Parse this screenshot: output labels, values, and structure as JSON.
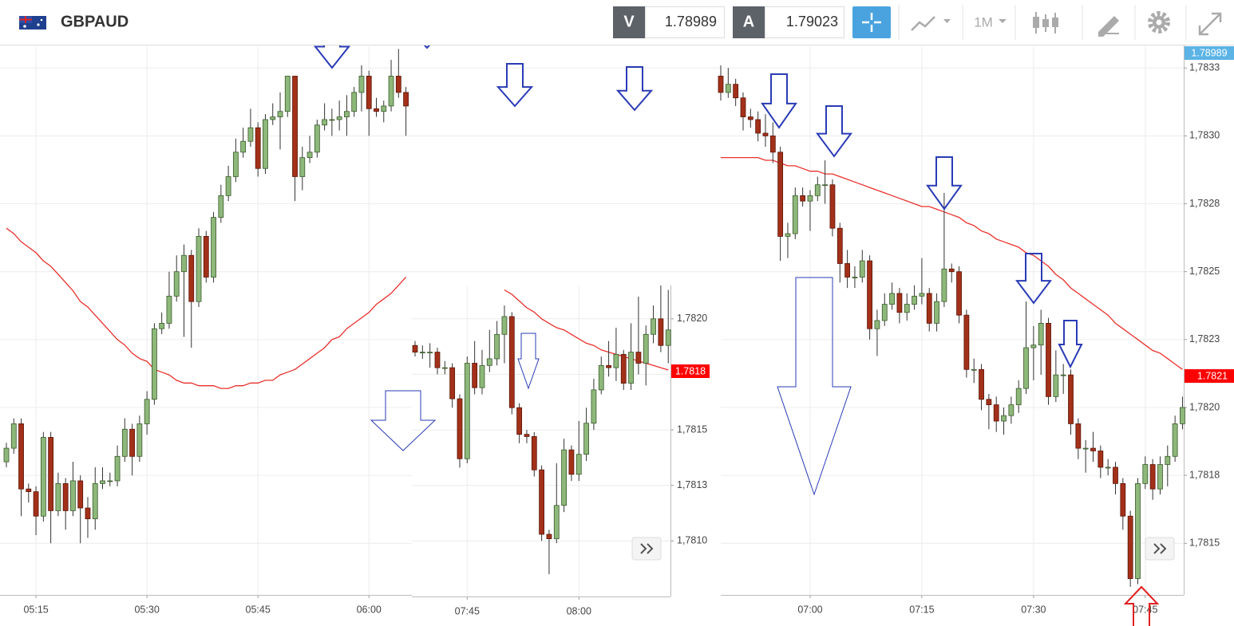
{
  "header": {
    "symbol": "GBPAUD",
    "bid_label": "V",
    "bid": "1.78989",
    "ask_label": "A",
    "ask": "1.79023",
    "timeframe": "1M"
  },
  "chart_data": [
    {
      "type": "candlestick",
      "ylim": [
        1.78131,
        1.78333
      ],
      "yticks": [
        {
          "value": 1.78325,
          "label": "1,7833"
        },
        {
          "value": 1.783,
          "label": "1,7830"
        },
        {
          "value": 1.78275,
          "label": "1,7828"
        },
        {
          "value": 1.7825,
          "label": "1,7825"
        },
        {
          "value": 1.78225,
          "label": "1,7823"
        },
        {
          "value": 1.782,
          "label": "1,7820"
        },
        {
          "value": 1.78175,
          "label": "1,7818"
        },
        {
          "value": 1.7815,
          "label": "1,7815"
        }
      ],
      "grid": true,
      "up_color": "#8db87a",
      "down_color": "#a33019",
      "ma_color": "#e8302b",
      "last_price_tag": "1.78989",
      "ma_tag": "1.7821",
      "xticks_left": [
        "05:15",
        "05:30",
        "05:45",
        "06:00"
      ],
      "xticks_right": [
        "07:00",
        "07:15",
        "07:30",
        "07:45"
      ],
      "candles_left": [
        [
          1.7818,
          1.78187,
          1.78178,
          1.78185
        ],
        [
          1.78185,
          1.78196,
          1.78183,
          1.78194
        ],
        [
          1.78194,
          1.78196,
          1.7816,
          1.7817
        ],
        [
          1.7817,
          1.78172,
          1.78165,
          1.78169
        ],
        [
          1.78169,
          1.78171,
          1.78153,
          1.7816
        ],
        [
          1.7816,
          1.78191,
          1.78158,
          1.78189
        ],
        [
          1.78189,
          1.78191,
          1.7815,
          1.78162
        ],
        [
          1.78162,
          1.78176,
          1.7816,
          1.78172
        ],
        [
          1.78172,
          1.78174,
          1.78155,
          1.78162
        ],
        [
          1.78162,
          1.7818,
          1.7816,
          1.78173
        ],
        [
          1.78173,
          1.78175,
          1.7815,
          1.78163
        ],
        [
          1.78163,
          1.78167,
          1.78152,
          1.78159
        ],
        [
          1.78159,
          1.78178,
          1.78155,
          1.78172
        ],
        [
          1.78172,
          1.78178,
          1.7817,
          1.78173
        ],
        [
          1.78173,
          1.78176,
          1.78171,
          1.78173
        ],
        [
          1.78173,
          1.78186,
          1.78171,
          1.78182
        ],
        [
          1.78182,
          1.78196,
          1.7818,
          1.78192
        ],
        [
          1.78192,
          1.78194,
          1.78175,
          1.78182
        ],
        [
          1.78182,
          1.78197,
          1.7818,
          1.78194
        ],
        [
          1.78194,
          1.78206,
          1.7819,
          1.78203
        ],
        [
          1.78203,
          1.78231,
          1.78201,
          1.78229
        ],
        [
          1.78229,
          1.78235,
          1.78227,
          1.78231
        ],
        [
          1.78231,
          1.7825,
          1.78229,
          1.78241
        ],
        [
          1.78241,
          1.78256,
          1.78239,
          1.7825
        ],
        [
          1.7825,
          1.7826,
          1.78226,
          1.78256
        ],
        [
          1.78256,
          1.78258,
          1.78222,
          1.78239
        ],
        [
          1.78239,
          1.78266,
          1.78237,
          1.78263
        ],
        [
          1.78263,
          1.78265,
          1.78246,
          1.78248
        ],
        [
          1.78248,
          1.78272,
          1.78246,
          1.7827
        ],
        [
          1.7827,
          1.78282,
          1.78268,
          1.78278
        ],
        [
          1.78278,
          1.78289,
          1.78276,
          1.78285
        ],
        [
          1.78285,
          1.78299,
          1.78283,
          1.78294
        ],
        [
          1.78294,
          1.78303,
          1.78292,
          1.78298
        ],
        [
          1.78298,
          1.7831,
          1.78296,
          1.78303
        ],
        [
          1.78303,
          1.78305,
          1.78285,
          1.78288
        ],
        [
          1.78288,
          1.78308,
          1.78286,
          1.78306
        ],
        [
          1.78306,
          1.78312,
          1.78304,
          1.78307
        ],
        [
          1.78307,
          1.78316,
          1.78295,
          1.78309
        ],
        [
          1.78309,
          1.78322,
          1.78307,
          1.78322
        ],
        [
          1.78322,
          1.78322,
          1.78276,
          1.78285
        ],
        [
          1.78285,
          1.78296,
          1.7828,
          1.78292
        ],
        [
          1.78292,
          1.783,
          1.7829,
          1.78294
        ],
        [
          1.78294,
          1.78306,
          1.78292,
          1.78304
        ],
        [
          1.78304,
          1.78312,
          1.78302,
          1.78306
        ],
        [
          1.78306,
          1.7831,
          1.783,
          1.78306
        ],
        [
          1.78306,
          1.78313,
          1.78302,
          1.78307
        ],
        [
          1.78307,
          1.78315,
          1.783,
          1.78309
        ],
        [
          1.78309,
          1.78318,
          1.78307,
          1.78316
        ],
        [
          1.78316,
          1.78326,
          1.78309,
          1.78322
        ],
        [
          1.78322,
          1.78324,
          1.783,
          1.7831
        ],
        [
          1.7831,
          1.78314,
          1.78307,
          1.78309
        ],
        [
          1.78309,
          1.78313,
          1.78305,
          1.78311
        ],
        [
          1.78311,
          1.78328,
          1.78309,
          1.78322
        ],
        [
          1.78322,
          1.78332,
          1.78314,
          1.78316
        ],
        [
          1.78316,
          1.78318,
          1.783,
          1.78311
        ]
      ],
      "ma_left": [
        1.78266,
        1.78264,
        1.78261,
        1.78259,
        1.78257,
        1.78254,
        1.78252,
        1.78249,
        1.78246,
        1.78243,
        1.78239,
        1.78237,
        1.78234,
        1.78231,
        1.78228,
        1.78225,
        1.78223,
        1.7822,
        1.78218,
        1.78217,
        1.78214,
        1.78213,
        1.78212,
        1.7821,
        1.78209,
        1.78209,
        1.78208,
        1.78208,
        1.78208,
        1.78207,
        1.78207,
        1.78208,
        1.78208,
        1.78209,
        1.78209,
        1.7821,
        1.7821,
        1.78212,
        1.78213,
        1.78214,
        1.78216,
        1.78218,
        1.7822,
        1.78222,
        1.78225,
        1.78226,
        1.78229,
        1.78231,
        1.78233,
        1.78235,
        1.78238,
        1.7824,
        1.78242,
        1.78245,
        1.78248
      ],
      "candles_right": [
        [
          1.78322,
          1.78326,
          1.78313,
          1.78316
        ],
        [
          1.78316,
          1.78325,
          1.78314,
          1.78319
        ],
        [
          1.78319,
          1.78321,
          1.78311,
          1.78314
        ],
        [
          1.78314,
          1.78316,
          1.78302,
          1.78307
        ],
        [
          1.78307,
          1.7831,
          1.78303,
          1.78306
        ],
        [
          1.78306,
          1.78309,
          1.78298,
          1.78301
        ],
        [
          1.78301,
          1.78308,
          1.78296,
          1.783
        ],
        [
          1.783,
          1.78305,
          1.7829,
          1.78294
        ],
        [
          1.78294,
          1.78296,
          1.78254,
          1.78263
        ],
        [
          1.78263,
          1.78268,
          1.78255,
          1.78264
        ],
        [
          1.78264,
          1.78281,
          1.78262,
          1.78278
        ],
        [
          1.78278,
          1.78281,
          1.78274,
          1.78276
        ],
        [
          1.78276,
          1.7828,
          1.78265,
          1.78278
        ],
        [
          1.78278,
          1.78285,
          1.78276,
          1.78282
        ],
        [
          1.78282,
          1.78291,
          1.78275,
          1.78282
        ],
        [
          1.78282,
          1.78284,
          1.78263,
          1.78266
        ],
        [
          1.78266,
          1.78268,
          1.78246,
          1.78253
        ],
        [
          1.78253,
          1.78258,
          1.78244,
          1.78248
        ],
        [
          1.78248,
          1.78252,
          1.78244,
          1.78248
        ],
        [
          1.78248,
          1.78258,
          1.78246,
          1.78254
        ],
        [
          1.78254,
          1.78256,
          1.78225,
          1.78229
        ],
        [
          1.78229,
          1.78236,
          1.78219,
          1.78232
        ],
        [
          1.78232,
          1.78242,
          1.7823,
          1.78238
        ],
        [
          1.78238,
          1.78246,
          1.78236,
          1.78242
        ],
        [
          1.78242,
          1.78244,
          1.78231,
          1.78235
        ],
        [
          1.78235,
          1.78242,
          1.78232,
          1.78238
        ],
        [
          1.78238,
          1.78245,
          1.78236,
          1.78241
        ],
        [
          1.78241,
          1.78255,
          1.78238,
          1.78242
        ],
        [
          1.78242,
          1.78244,
          1.78228,
          1.78231
        ],
        [
          1.78231,
          1.78242,
          1.78228,
          1.78239
        ],
        [
          1.78239,
          1.78279,
          1.78237,
          1.78251
        ],
        [
          1.78251,
          1.78253,
          1.78246,
          1.7825
        ],
        [
          1.7825,
          1.78252,
          1.78231,
          1.78234
        ],
        [
          1.78234,
          1.78236,
          1.78211,
          1.78214
        ],
        [
          1.78214,
          1.78218,
          1.78209,
          1.78214
        ],
        [
          1.78214,
          1.78216,
          1.78199,
          1.78203
        ],
        [
          1.78203,
          1.78205,
          1.78192,
          1.78201
        ],
        [
          1.78201,
          1.78204,
          1.78191,
          1.78195
        ],
        [
          1.78195,
          1.782,
          1.7819,
          1.78197
        ],
        [
          1.78197,
          1.78204,
          1.78194,
          1.78201
        ],
        [
          1.78201,
          1.7821,
          1.78198,
          1.78207
        ],
        [
          1.78207,
          1.78239,
          1.78205,
          1.78222
        ],
        [
          1.78222,
          1.7823,
          1.7821,
          1.78223
        ],
        [
          1.78223,
          1.78236,
          1.78212,
          1.78231
        ],
        [
          1.78231,
          1.78233,
          1.78201,
          1.78204
        ],
        [
          1.78204,
          1.78221,
          1.78202,
          1.78212
        ],
        [
          1.78212,
          1.78216,
          1.78205,
          1.78212
        ],
        [
          1.78212,
          1.78214,
          1.7819,
          1.78194
        ],
        [
          1.78194,
          1.78196,
          1.78181,
          1.78185
        ],
        [
          1.78185,
          1.78188,
          1.78176,
          1.78185
        ],
        [
          1.78185,
          1.78191,
          1.7818,
          1.78184
        ],
        [
          1.78184,
          1.78186,
          1.78174,
          1.78178
        ],
        [
          1.78178,
          1.78181,
          1.78175,
          1.78178
        ],
        [
          1.78178,
          1.7818,
          1.78168,
          1.78172
        ],
        [
          1.78172,
          1.78174,
          1.78155,
          1.7816
        ],
        [
          1.7816,
          1.78162,
          1.78134,
          1.78137
        ],
        [
          1.78137,
          1.78174,
          1.78135,
          1.78172
        ],
        [
          1.78172,
          1.78182,
          1.7817,
          1.78179
        ],
        [
          1.78179,
          1.78181,
          1.78166,
          1.7817
        ],
        [
          1.7817,
          1.78182,
          1.78168,
          1.78179
        ],
        [
          1.78179,
          1.78186,
          1.78171,
          1.78182
        ],
        [
          1.78182,
          1.78197,
          1.7818,
          1.78194
        ],
        [
          1.78194,
          1.78204,
          1.78192,
          1.782
        ]
      ],
      "ma_right": [
        1.78292,
        1.78292,
        1.78292,
        1.78292,
        1.78292,
        1.78292,
        1.78291,
        1.78291,
        1.7829,
        1.78289,
        1.78289,
        1.78288,
        1.78287,
        1.78287,
        1.78286,
        1.78286,
        1.78285,
        1.78284,
        1.78283,
        1.78282,
        1.78281,
        1.7828,
        1.78279,
        1.78278,
        1.78277,
        1.78276,
        1.78275,
        1.78274,
        1.78274,
        1.78273,
        1.78272,
        1.78271,
        1.7827,
        1.78268,
        1.78267,
        1.78265,
        1.78264,
        1.78262,
        1.78261,
        1.7826,
        1.78259,
        1.78257,
        1.78256,
        1.78254,
        1.78252,
        1.78249,
        1.78247,
        1.78244,
        1.78242,
        1.7824,
        1.78238,
        1.78236,
        1.78234,
        1.78231,
        1.78229,
        1.78227,
        1.78225,
        1.78223,
        1.78221,
        1.7822,
        1.78218,
        1.78216,
        1.78214
      ]
    },
    {
      "type": "candlestick",
      "ylim": [
        1.78075,
        1.78215
      ],
      "yticks": [
        {
          "value": 1.782,
          "label": "1,7820"
        },
        {
          "value": 1.78175,
          "label": "1,7818"
        },
        {
          "value": 1.7815,
          "label": "1,7815"
        },
        {
          "value": 1.78125,
          "label": "1,7813"
        },
        {
          "value": 1.781,
          "label": "1,7810"
        }
      ],
      "grid": true,
      "up_color": "#8db87a",
      "down_color": "#a33019",
      "ma_color": "#e8302b",
      "ma_tag": "1.7818",
      "xticks": [
        "07:45",
        "08:00"
      ],
      "candles": [
        [
          1.78188,
          1.7819,
          1.78183,
          1.78185
        ],
        [
          1.78185,
          1.78188,
          1.78182,
          1.78185
        ],
        [
          1.78185,
          1.78189,
          1.78178,
          1.78185
        ],
        [
          1.78185,
          1.78187,
          1.78175,
          1.78178
        ],
        [
          1.78178,
          1.78181,
          1.78175,
          1.78178
        ],
        [
          1.78178,
          1.7818,
          1.7816,
          1.78164
        ],
        [
          1.78164,
          1.78166,
          1.78133,
          1.78137
        ],
        [
          1.78137,
          1.78183,
          1.78135,
          1.7818
        ],
        [
          1.7818,
          1.7819,
          1.78166,
          1.78169
        ],
        [
          1.78169,
          1.78186,
          1.78166,
          1.78179
        ],
        [
          1.78179,
          1.78195,
          1.78176,
          1.78182
        ],
        [
          1.78182,
          1.78199,
          1.78179,
          1.78193
        ],
        [
          1.78193,
          1.78206,
          1.7818,
          1.78201
        ],
        [
          1.78201,
          1.78203,
          1.78157,
          1.7816
        ],
        [
          1.7816,
          1.78162,
          1.78144,
          1.78148
        ],
        [
          1.78148,
          1.7815,
          1.78144,
          1.78147
        ],
        [
          1.78147,
          1.78149,
          1.78129,
          1.78132
        ],
        [
          1.78132,
          1.78134,
          1.781,
          1.78103
        ],
        [
          1.78103,
          1.78105,
          1.78085,
          1.78101
        ],
        [
          1.78101,
          1.78135,
          1.78099,
          1.78116
        ],
        [
          1.78116,
          1.78146,
          1.78113,
          1.78141
        ],
        [
          1.78141,
          1.78143,
          1.78127,
          1.7813
        ],
        [
          1.7813,
          1.78154,
          1.78127,
          1.78139
        ],
        [
          1.78139,
          1.7816,
          1.78136,
          1.78153
        ],
        [
          1.78153,
          1.78173,
          1.7815,
          1.78168
        ],
        [
          1.78168,
          1.78183,
          1.78166,
          1.78179
        ],
        [
          1.78179,
          1.7819,
          1.78174,
          1.78178
        ],
        [
          1.78178,
          1.78196,
          1.78172,
          1.78184
        ],
        [
          1.78184,
          1.78186,
          1.78168,
          1.78171
        ],
        [
          1.78171,
          1.78198,
          1.78168,
          1.78185
        ],
        [
          1.78185,
          1.7821,
          1.78175,
          1.7818
        ],
        [
          1.7818,
          1.78197,
          1.7817,
          1.78193
        ],
        [
          1.78193,
          1.78206,
          1.78189,
          1.782
        ],
        [
          1.782,
          1.78215,
          1.78185,
          1.78188
        ],
        [
          1.78188,
          1.78213,
          1.7818,
          1.78195
        ]
      ],
      "ma": [
        null,
        null,
        null,
        null,
        null,
        null,
        null,
        null,
        null,
        null,
        null,
        null,
        1.78213,
        1.78211,
        1.78208,
        1.78205,
        1.78203,
        1.782,
        1.78198,
        1.78196,
        1.78195,
        1.78193,
        1.78191,
        1.78189,
        1.78188,
        1.78186,
        1.78185,
        1.78184,
        1.78183,
        1.78182,
        1.78181,
        1.7818,
        1.78179,
        1.78178,
        1.78177
      ]
    }
  ]
}
